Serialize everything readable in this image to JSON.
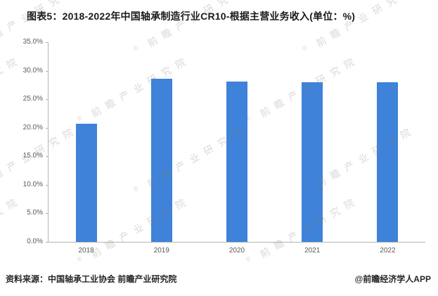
{
  "title": "图表5：2018-2022年中国轴承制造行业CR10-根据主营业务收入(单位：%)",
  "chart_data": {
    "type": "bar",
    "title": "2018-2022年中国轴承制造行业CR10-根据主营业务收入",
    "unit": "%",
    "categories": [
      "2018",
      "2019",
      "2020",
      "2021",
      "2022"
    ],
    "values": [
      20.7,
      28.6,
      28.1,
      28.0,
      28.0
    ],
    "ylim": [
      0,
      35
    ],
    "ytick_step": 5,
    "ytick_labels": [
      "0.0%",
      "5.0%",
      "10.0%",
      "15.0%",
      "20.0%",
      "25.0%",
      "30.0%",
      "35.0%"
    ],
    "xlabel": "",
    "ylabel": "",
    "bar_color": "#3e82d9",
    "grid": false,
    "legend_position": "none"
  },
  "watermark": {
    "reg": "®",
    "text": "前瞻产业研究院"
  },
  "footer": {
    "source": "资料来源：中国轴承工业协会 前瞻产业研究院",
    "credit": "@前瞻经济学人APP"
  }
}
